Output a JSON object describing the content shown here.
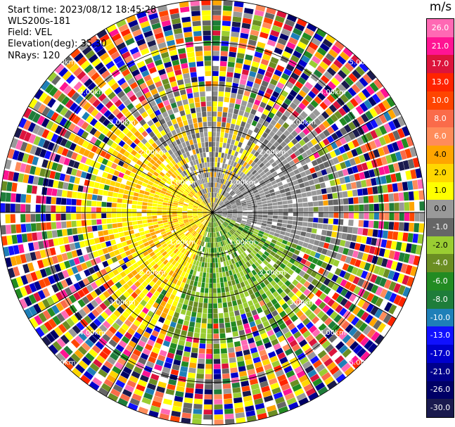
{
  "header": {
    "start_time": "Start time: 2023/08/12 18:45:28",
    "instrument": "WLS200s-181",
    "field": "Field: VEL",
    "elevation": "Elevation(deg): 35.30",
    "nrays": "NRays: 120"
  },
  "colorbar": {
    "title": "m/s",
    "ticks": [
      "26.0",
      "21.0",
      "17.0",
      "13.0",
      "10.0",
      "8.0",
      "6.0",
      "4.0",
      "2.0",
      "1.0",
      "0.0",
      "-1.0",
      "-2.0",
      "-4.0",
      "-6.0",
      "-8.0",
      "-10.0",
      "-13.0",
      "-17.0",
      "-21.0",
      "-26.0",
      "-30.0"
    ],
    "colors": [
      "#ff69b4",
      "#ff1493",
      "#dc143c",
      "#ff2400",
      "#ff4500",
      "#fa6b4a",
      "#ff8c5a",
      "#ffa500",
      "#ffd700",
      "#ffff00",
      "#999999",
      "#666666",
      "#9acd32",
      "#6b8e23",
      "#228b22",
      "#1e7d3a",
      "#1e7fb8",
      "#1010ff",
      "#0000cd",
      "#00008b",
      "#000066",
      "#1a1a4e"
    ]
  },
  "chart_data": {
    "type": "ppi",
    "field": "VEL",
    "units": "m/s",
    "nrays": 120,
    "range_rings_labels": [
      "1.00km",
      "2.00km",
      "3.00km",
      "4.00km",
      "5.00km"
    ],
    "range_ring_km": [
      1,
      2,
      3,
      4,
      5
    ],
    "max_range_km": 5
  }
}
